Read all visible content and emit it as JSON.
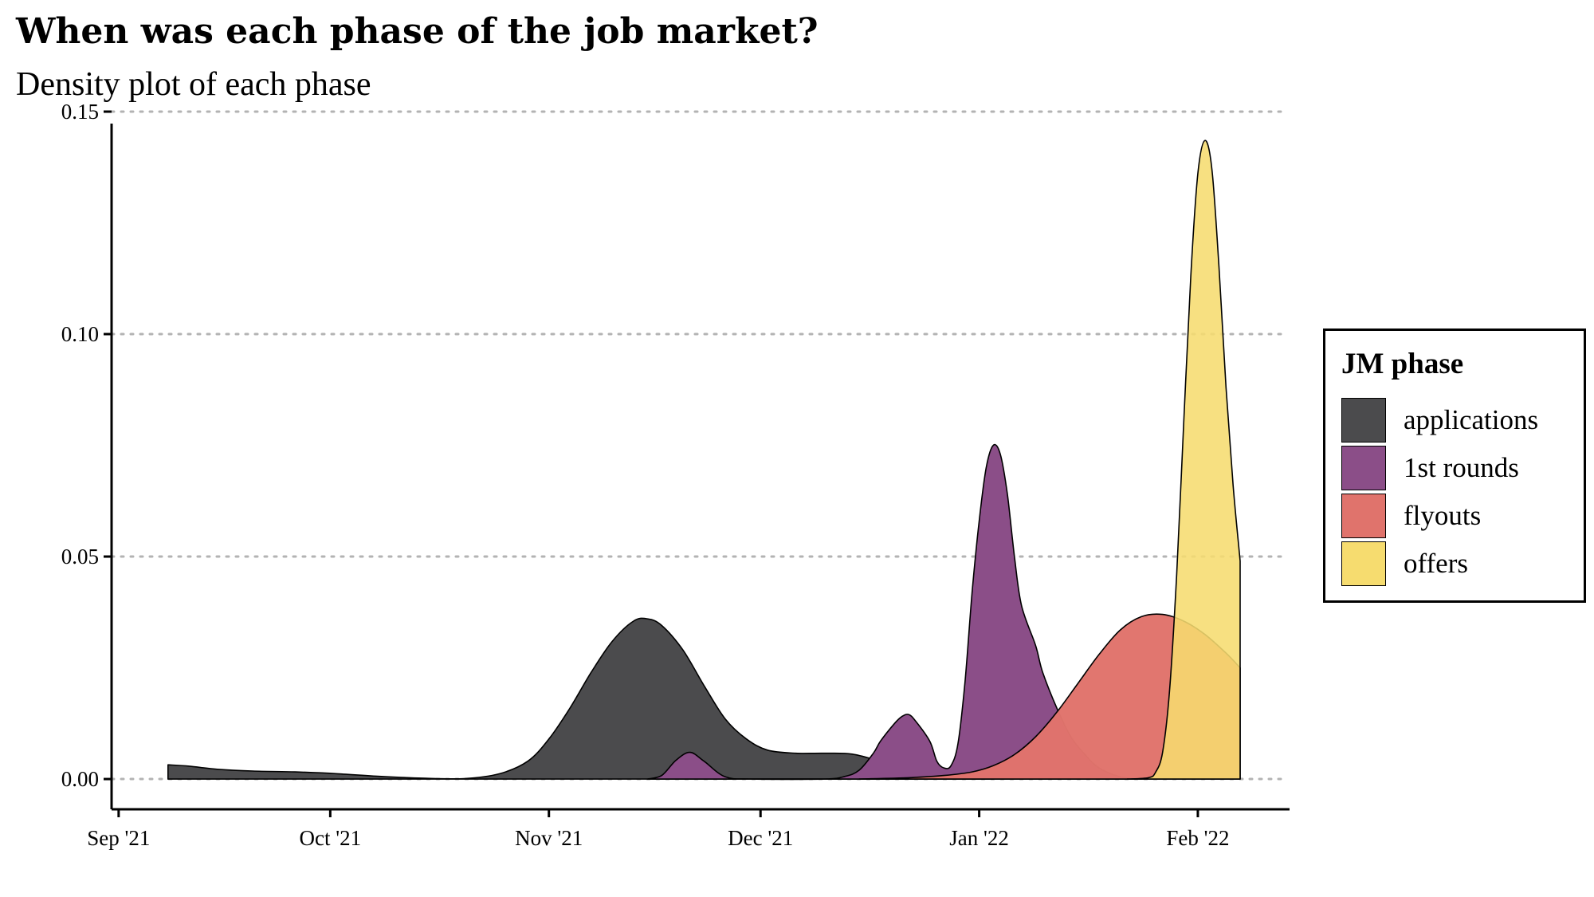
{
  "chart_data": {
    "type": "area",
    "title": "When was each phase of the job market?",
    "subtitle": "Density plot of each phase",
    "xlabel": "",
    "ylabel": "",
    "x_axis": {
      "type": "date",
      "range": [
        "2021-08-31",
        "2022-02-14"
      ],
      "ticks": [
        {
          "date": "2021-09-01",
          "label": "Sep '21"
        },
        {
          "date": "2021-10-01",
          "label": "Oct '21"
        },
        {
          "date": "2021-11-01",
          "label": "Nov '21"
        },
        {
          "date": "2021-12-01",
          "label": "Dec '21"
        },
        {
          "date": "2022-01-01",
          "label": "Jan '22"
        },
        {
          "date": "2022-02-01",
          "label": "Feb '22"
        }
      ]
    },
    "y_axis": {
      "ylim": [
        -0.0068,
        0.15
      ],
      "ticks": [
        {
          "value": 0.0,
          "label": "0.00"
        },
        {
          "value": 0.05,
          "label": "0.05"
        },
        {
          "value": 0.1,
          "label": "0.10"
        },
        {
          "value": 0.15,
          "label": "0.15"
        }
      ]
    },
    "grid": "horizontal dotted",
    "legend": {
      "title": "JM phase",
      "position": "right",
      "entries": [
        {
          "label": "applications",
          "color": "#4b4b4d"
        },
        {
          "label": "1st rounds",
          "color": "#8b4e88"
        },
        {
          "label": "flyouts",
          "color": "#e0736c"
        },
        {
          "label": "offers",
          "color": "#f6dc6f"
        }
      ]
    },
    "series": [
      {
        "name": "applications",
        "color": "#4b4b4d",
        "opacity": 1,
        "points": [
          [
            "2021-09-08",
            0.0032
          ],
          [
            "2021-09-11",
            0.0029
          ],
          [
            "2021-09-15",
            0.0022
          ],
          [
            "2021-09-20",
            0.0018
          ],
          [
            "2021-09-26",
            0.0016
          ],
          [
            "2021-10-02",
            0.0012
          ],
          [
            "2021-10-08",
            0.0006
          ],
          [
            "2021-10-14",
            0.0002
          ],
          [
            "2021-10-20",
            0.0001
          ],
          [
            "2021-10-25",
            0.0012
          ],
          [
            "2021-10-29",
            0.004
          ],
          [
            "2021-11-01",
            0.009
          ],
          [
            "2021-11-04",
            0.016
          ],
          [
            "2021-11-07",
            0.024
          ],
          [
            "2021-11-10",
            0.031
          ],
          [
            "2021-11-13",
            0.0355
          ],
          [
            "2021-11-15",
            0.036
          ],
          [
            "2021-11-17",
            0.0345
          ],
          [
            "2021-11-20",
            0.029
          ],
          [
            "2021-11-23",
            0.021
          ],
          [
            "2021-11-26",
            0.0135
          ],
          [
            "2021-11-29",
            0.009
          ],
          [
            "2021-12-02",
            0.0065
          ],
          [
            "2021-12-06",
            0.0058
          ],
          [
            "2021-12-10",
            0.0058
          ],
          [
            "2021-12-14",
            0.0056
          ],
          [
            "2021-12-18",
            0.004
          ],
          [
            "2021-12-22",
            0.0024
          ],
          [
            "2021-12-26",
            0.0012
          ],
          [
            "2021-12-31",
            0.0005
          ],
          [
            "2022-01-03",
            0.0
          ]
        ]
      },
      {
        "name": "1st rounds",
        "color": "#8b4e88",
        "opacity": 1,
        "points": [
          [
            "2021-11-15",
            0.0
          ],
          [
            "2021-11-17",
            0.0008
          ],
          [
            "2021-11-19",
            0.0042
          ],
          [
            "2021-11-21",
            0.006
          ],
          [
            "2021-11-23",
            0.004
          ],
          [
            "2021-11-26",
            0.0005
          ],
          [
            "2021-11-30",
            0.0
          ],
          [
            "2021-12-10",
            0.0
          ],
          [
            "2021-12-13",
            0.0006
          ],
          [
            "2021-12-15",
            0.002
          ],
          [
            "2021-12-17",
            0.0058
          ],
          [
            "2021-12-18",
            0.0085
          ],
          [
            "2021-12-20",
            0.0125
          ],
          [
            "2021-12-21",
            0.014
          ],
          [
            "2021-12-22",
            0.0145
          ],
          [
            "2021-12-23",
            0.013
          ],
          [
            "2021-12-25",
            0.0085
          ],
          [
            "2021-12-26",
            0.004
          ],
          [
            "2021-12-27",
            0.0025
          ],
          [
            "2021-12-28",
            0.003
          ],
          [
            "2021-12-29",
            0.008
          ],
          [
            "2021-12-30",
            0.022
          ],
          [
            "2021-12-31",
            0.042
          ],
          [
            "2022-01-01",
            0.058
          ],
          [
            "2022-01-02",
            0.07
          ],
          [
            "2022-01-03",
            0.075
          ],
          [
            "2022-01-04",
            0.073
          ],
          [
            "2022-01-05",
            0.064
          ],
          [
            "2022-01-06",
            0.05
          ],
          [
            "2022-01-07",
            0.039
          ],
          [
            "2022-01-09",
            0.03
          ],
          [
            "2022-01-10",
            0.024
          ],
          [
            "2022-01-12",
            0.016
          ],
          [
            "2022-01-14",
            0.0095
          ],
          [
            "2022-01-16",
            0.0055
          ],
          [
            "2022-01-18",
            0.0025
          ],
          [
            "2022-01-21",
            0.0005
          ],
          [
            "2022-01-24",
            0.0
          ]
        ]
      },
      {
        "name": "flyouts",
        "color": "#e0736c",
        "opacity": 0.98,
        "points": [
          [
            "2021-12-15",
            0.0
          ],
          [
            "2021-12-22",
            0.0003
          ],
          [
            "2021-12-27",
            0.0008
          ],
          [
            "2021-12-31",
            0.0016
          ],
          [
            "2022-01-03",
            0.003
          ],
          [
            "2022-01-06",
            0.0055
          ],
          [
            "2022-01-09",
            0.0095
          ],
          [
            "2022-01-12",
            0.015
          ],
          [
            "2022-01-15",
            0.0215
          ],
          [
            "2022-01-18",
            0.028
          ],
          [
            "2022-01-21",
            0.0335
          ],
          [
            "2022-01-24",
            0.0365
          ],
          [
            "2022-01-27",
            0.037
          ],
          [
            "2022-01-30",
            0.0355
          ],
          [
            "2022-02-02",
            0.0325
          ],
          [
            "2022-02-05",
            0.0283
          ],
          [
            "2022-02-07",
            0.025
          ]
        ]
      },
      {
        "name": "offers",
        "color": "#f6dc6f",
        "opacity": 0.88,
        "points": [
          [
            "2022-01-22",
            0.0
          ],
          [
            "2022-01-25",
            0.0003
          ],
          [
            "2022-01-26",
            0.0015
          ],
          [
            "2022-01-27",
            0.006
          ],
          [
            "2022-01-28",
            0.02
          ],
          [
            "2022-01-29",
            0.046
          ],
          [
            "2022-01-30",
            0.08
          ],
          [
            "2022-01-31",
            0.113
          ],
          [
            "2022-02-01",
            0.136
          ],
          [
            "2022-02-02",
            0.1435
          ],
          [
            "2022-02-03",
            0.137
          ],
          [
            "2022-02-04",
            0.115
          ],
          [
            "2022-02-05",
            0.088
          ],
          [
            "2022-02-06",
            0.066
          ],
          [
            "2022-02-07",
            0.049
          ]
        ]
      }
    ]
  }
}
